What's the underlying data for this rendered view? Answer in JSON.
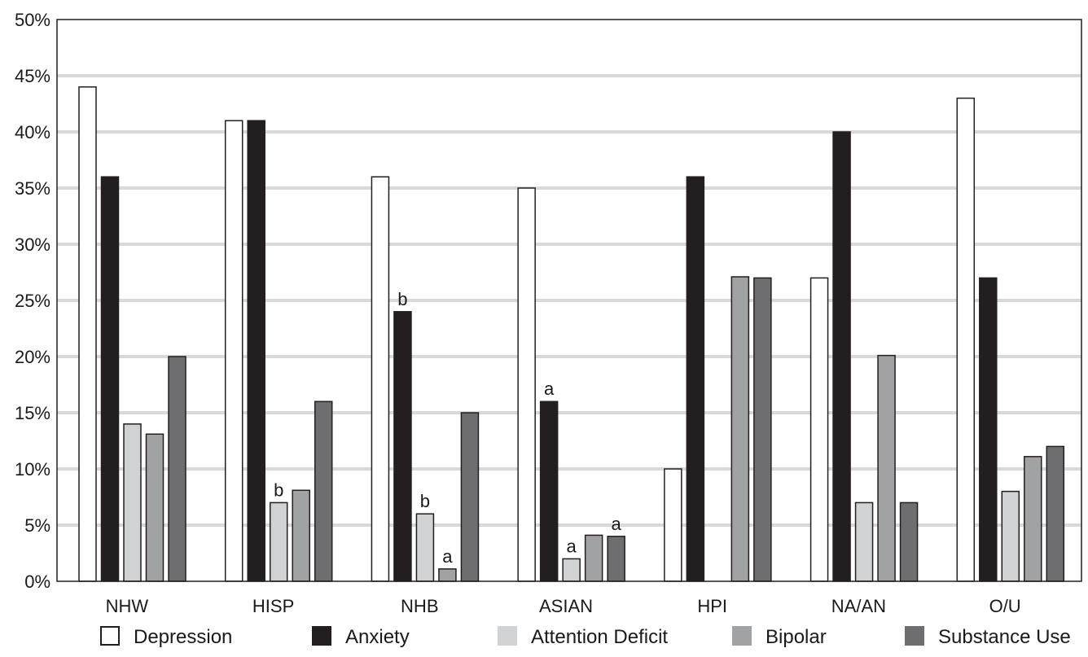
{
  "chart_data": {
    "type": "bar",
    "title": "",
    "xlabel": "",
    "ylabel": "",
    "ylim": [
      0,
      50
    ],
    "ytick_labels": [
      "0%",
      "5%",
      "10%",
      "15%",
      "20%",
      "25%",
      "30%",
      "35%",
      "40%",
      "45%",
      "50%"
    ],
    "grid": true,
    "legend_position": "bottom",
    "categories": [
      "NHW",
      "HISP",
      "NHB",
      "ASIAN",
      "HPI",
      "NA/AN",
      "O/U"
    ],
    "series": [
      {
        "name": "Depression",
        "color": "#ffffff",
        "values": [
          44,
          41,
          36,
          35,
          10,
          27,
          43
        ]
      },
      {
        "name": "Anxiety",
        "color": "#231f20",
        "values": [
          36,
          41,
          24,
          16,
          36,
          40,
          27
        ]
      },
      {
        "name": "Attention Deficit",
        "color": "#d1d2d3",
        "values": [
          14,
          7,
          6,
          2,
          0,
          7,
          8
        ]
      },
      {
        "name": "Bipolar",
        "color": "#a1a2a4",
        "values": [
          13.1,
          8.1,
          1.1,
          4.1,
          27.1,
          20.1,
          11.1
        ]
      },
      {
        "name": "Substance Use",
        "color": "#6e6e70",
        "values": [
          20,
          16,
          15,
          4,
          27,
          7,
          12
        ]
      }
    ],
    "annotations": [
      {
        "category": "HISP",
        "series": "Attention Deficit",
        "text": "b"
      },
      {
        "category": "NHB",
        "series": "Anxiety",
        "text": "b"
      },
      {
        "category": "NHB",
        "series": "Attention Deficit",
        "text": "b"
      },
      {
        "category": "NHB",
        "series": "Bipolar",
        "text": "a"
      },
      {
        "category": "ASIAN",
        "series": "Anxiety",
        "text": "a"
      },
      {
        "category": "ASIAN",
        "series": "Attention Deficit",
        "text": "a"
      },
      {
        "category": "ASIAN",
        "series": "Substance Use",
        "text": "a"
      }
    ]
  }
}
